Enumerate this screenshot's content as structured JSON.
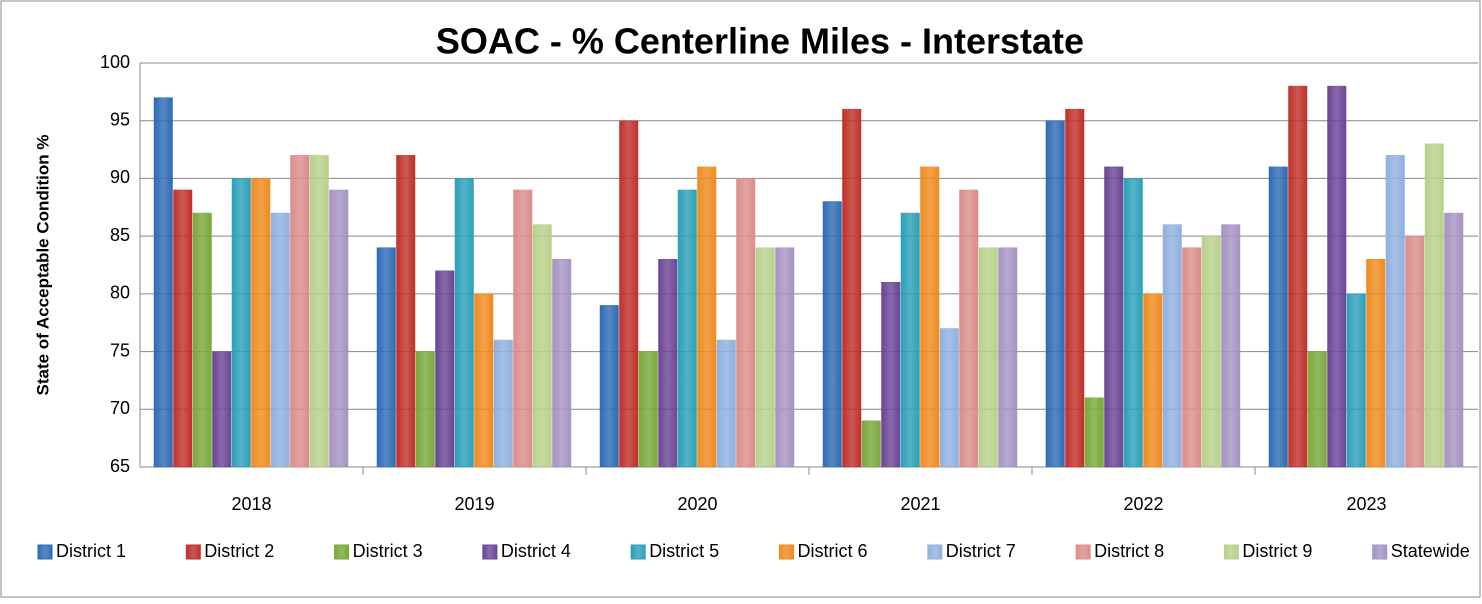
{
  "chart_data": {
    "type": "bar",
    "title": "SOAC - % Centerline Miles - Interstate",
    "y_label": "State of Acceptable Condition %",
    "categories": [
      "2018",
      "2019",
      "2020",
      "2021",
      "2022",
      "2023"
    ],
    "series": [
      {
        "name": "District 1",
        "color": "#2e6bb5",
        "values": [
          97,
          84,
          79,
          88,
          95,
          91
        ]
      },
      {
        "name": "District 2",
        "color": "#c0302a",
        "values": [
          89,
          92,
          95,
          96,
          96,
          98
        ]
      },
      {
        "name": "District 3",
        "color": "#7aa83a",
        "values": [
          87,
          75,
          75,
          69,
          71,
          75
        ]
      },
      {
        "name": "District 4",
        "color": "#6b4596",
        "values": [
          75,
          82,
          83,
          81,
          91,
          98
        ]
      },
      {
        "name": "District 5",
        "color": "#2aa0b8",
        "values": [
          90,
          90,
          89,
          87,
          90,
          80
        ]
      },
      {
        "name": "District 6",
        "color": "#f08a1e",
        "values": [
          90,
          80,
          91,
          91,
          80,
          83
        ]
      },
      {
        "name": "District 7",
        "color": "#8fb0de",
        "values": [
          87,
          76,
          76,
          77,
          86,
          92
        ]
      },
      {
        "name": "District 8",
        "color": "#db8d8b",
        "values": [
          92,
          89,
          90,
          89,
          84,
          85
        ]
      },
      {
        "name": "District 9",
        "color": "#b8d08a",
        "values": [
          92,
          86,
          84,
          84,
          85,
          93
        ]
      },
      {
        "name": "Statewide",
        "color": "#a593c2",
        "values": [
          89,
          83,
          84,
          84,
          86,
          87
        ]
      }
    ],
    "ylim": [
      65,
      100
    ],
    "yticks": [
      65,
      70,
      75,
      80,
      85,
      90,
      95,
      100
    ],
    "grid": true,
    "legend": "bottom"
  }
}
